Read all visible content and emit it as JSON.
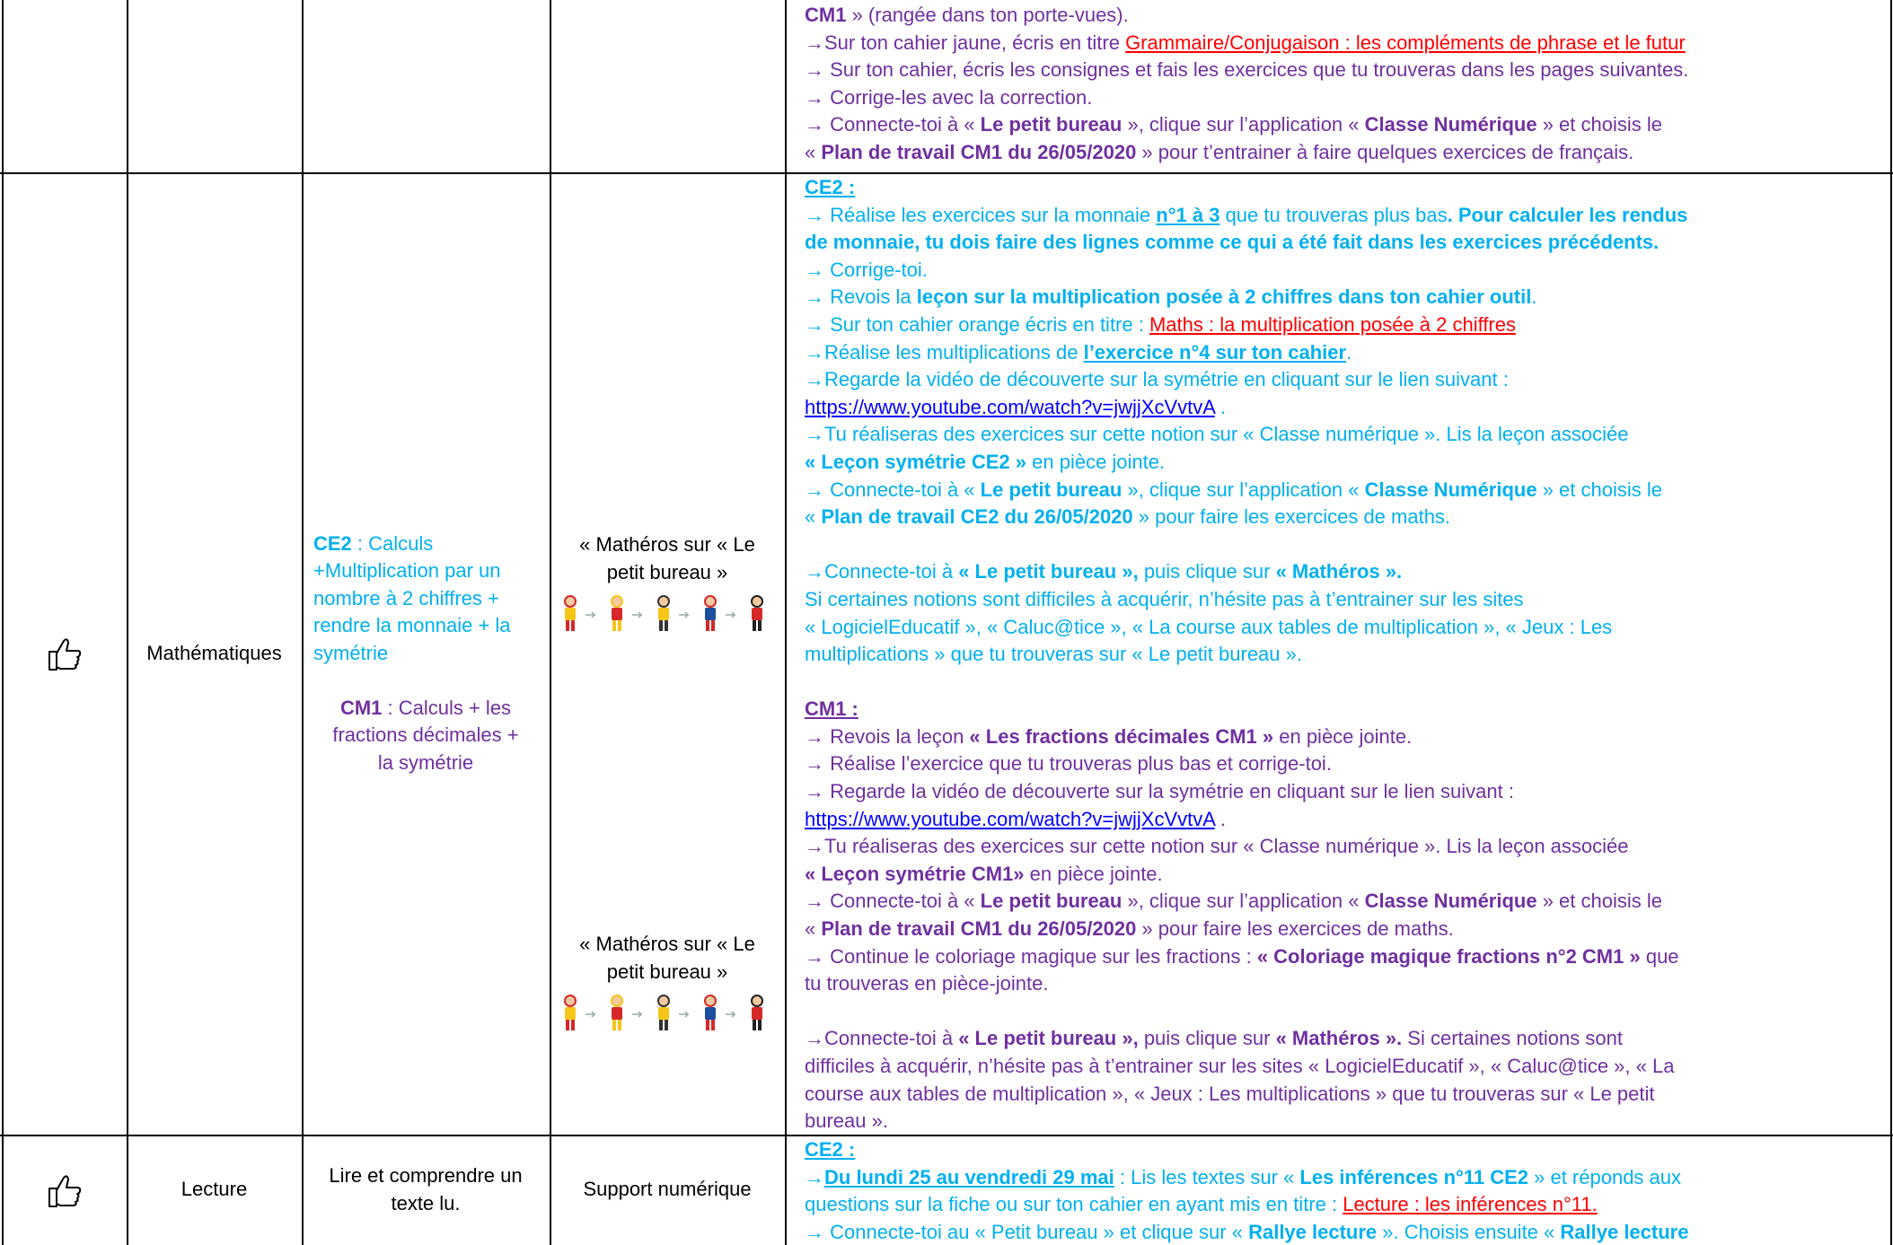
{
  "rows": [
    {
      "instructions": [
        {
          "color": "#7030a0",
          "lines": [
            [
              {
                "text": "CM1",
                "bold": true
              },
              " » (rangée dans ton porte-vues)."
            ],
            [
              "→Sur ton cahier jaune, écris en titre ",
              {
                "text": "Grammaire/Conjugaison : les compléments de phrase et le futur",
                "underline": true,
                "color": "#ff0000"
              }
            ],
            [
              "→ Sur ton cahier, écris les consignes et fais les exercices que tu trouveras dans les pages suivantes."
            ],
            [
              "→ Corrige-les avec la correction."
            ],
            [
              "→ Connecte-toi à « ",
              {
                "text": "Le petit bureau",
                "bold": true
              },
              " », clique sur l’application « ",
              {
                "text": "Classe Numérique",
                "bold": true
              },
              " » et choisis le"
            ],
            [
              "« ",
              {
                "text": "Plan de travail CM1 du 26/05/2020",
                "bold": true
              },
              " » pour t’entrainer à faire quelques exercices de français."
            ]
          ]
        }
      ]
    },
    {
      "subject": "Mathématiques",
      "objective": [
        {
          "color": "#00b0f0",
          "lines": [
            [
              {
                "text": "CE2",
                "bold": true
              },
              " : Calculs"
            ],
            [
              "+Multiplication par un"
            ],
            [
              "nombre à 2 chiffres +"
            ],
            [
              "rendre la monnaie + la"
            ],
            [
              "symétrie"
            ]
          ]
        },
        {
          "color": "#7030a0",
          "lines": [
            [
              {
                "text": "CM1",
                "bold": true
              },
              " : Calculs + les"
            ],
            [
              "fractions décimales +"
            ],
            [
              "la symétrie"
            ]
          ]
        }
      ],
      "support": [
        {
          "lines": [
            [
              "« Mathéros sur « Le"
            ],
            [
              "petit bureau »"
            ]
          ]
        },
        {
          "lines": [
            [
              "« Mathéros sur « Le"
            ],
            [
              "petit bureau »"
            ]
          ]
        }
      ],
      "instructions": [
        {
          "color": "#00b0f0",
          "lines": [
            [
              {
                "text": "CE2 :",
                "bold": true,
                "underline": true
              }
            ],
            [
              "→ Réalise les exercices sur la monnaie ",
              {
                "text": "n°1 à 3",
                "bold": true,
                "underline": true
              },
              " que tu trouveras plus bas",
              {
                "text": ". Pour calculer les rendus",
                "bold": true
              }
            ],
            [
              {
                "text": "de monnaie, tu dois faire des lignes comme ce qui a été fait dans les exercices précédents.",
                "bold": true
              }
            ],
            [
              "→ Corrige-toi."
            ],
            [
              "→ Revois la ",
              {
                "text": "leçon sur la multiplication posée à 2 chiffres dans ton cahier outil",
                "bold": true
              },
              "."
            ],
            [
              "→ Sur ton cahier orange écris en titre : ",
              {
                "text": "Maths : la multiplication posée à 2 chiffres",
                "underline": true,
                "color": "#ff0000"
              }
            ],
            [
              "→Réalise les multiplications de ",
              {
                "text": "l’exercice n°4 sur ton cahier",
                "bold": true,
                "underline": true
              },
              "."
            ],
            [
              "→Regarde la vidéo de découverte sur la symétrie en cliquant sur le lien suivant :"
            ],
            [
              {
                "text": "https://www.youtube.com/watch?v=jwjjXcVvtvA",
                "underline": true,
                "color": "#0000ff"
              },
              " ."
            ],
            [
              "→Tu réaliseras des exercices sur cette notion sur « Classe numérique ». Lis la leçon associée"
            ],
            [
              {
                "text": "« Leçon symétrie CE2 »",
                "bold": true
              },
              " en pièce jointe."
            ],
            [
              "→ Connecte-toi à « ",
              {
                "text": "Le petit bureau",
                "bold": true
              },
              " », clique sur l’application « ",
              {
                "text": "Classe Numérique",
                "bold": true
              },
              " » et choisis le"
            ],
            [
              "« ",
              {
                "text": "Plan de travail CE2 du 26/05/2020",
                "bold": true
              },
              " » pour faire les exercices de maths."
            ],
            [],
            [
              "→Connecte-toi à ",
              {
                "text": "« Le petit bureau »,",
                "bold": true
              },
              " puis clique sur ",
              {
                "text": "« Mathéros ».",
                "bold": true
              }
            ],
            [
              "Si certaines notions sont difficiles à acquérir, n’hésite pas à t’entrainer sur les sites"
            ],
            [
              "« LogicielEducatif », « Caluc@tice », « La course aux tables de multiplication », « Jeux : Les"
            ],
            [
              "multiplications » que tu trouveras sur « Le petit bureau »."
            ],
            []
          ]
        },
        {
          "color": "#7030a0",
          "lines": [
            [
              {
                "text": "CM1 :",
                "bold": true,
                "underline": true
              }
            ],
            [
              "→ Revois la leçon ",
              {
                "text": "« Les fractions décimales CM1 »",
                "bold": true
              },
              " en pièce jointe."
            ],
            [
              "→ Réalise l’exercice que tu trouveras plus bas et corrige-toi."
            ],
            [
              "→ Regarde la vidéo de découverte sur la symétrie en cliquant sur le lien suivant :"
            ],
            [
              {
                "text": "https://www.youtube.com/watch?v=jwjjXcVvtvA",
                "underline": true,
                "color": "#0000ff"
              },
              " ."
            ],
            [
              "→Tu réaliseras des exercices sur cette notion sur « Classe numérique ». Lis la leçon associée"
            ],
            [
              {
                "text": "« Leçon symétrie CM1»",
                "bold": true
              },
              " en pièce jointe."
            ],
            [
              "→ Connecte-toi à « ",
              {
                "text": "Le petit bureau",
                "bold": true
              },
              " », clique sur l’application « ",
              {
                "text": "Classe Numérique",
                "bold": true
              },
              " » et choisis le"
            ],
            [
              "« ",
              {
                "text": "Plan de travail CM1 du 26/05/2020",
                "bold": true
              },
              " » pour faire les exercices de maths."
            ],
            [
              "→ Continue le coloriage magique sur les fractions : ",
              {
                "text": "« Coloriage magique fractions n°2 CM1 »",
                "bold": true
              },
              " que"
            ],
            [
              "tu trouveras en pièce-jointe."
            ],
            [],
            [
              "→Connecte-toi à ",
              {
                "text": "« Le petit bureau »,",
                "bold": true
              },
              " puis clique sur ",
              {
                "text": "« Mathéros ».",
                "bold": true
              },
              " Si certaines notions sont"
            ],
            [
              "difficiles à acquérir, n’hésite pas à t’entrainer sur les sites « LogicielEducatif », « Caluc@tice », « La"
            ],
            [
              "course aux tables de multiplication », « Jeux : Les multiplications » que tu trouveras sur « Le petit"
            ],
            [
              "bureau »."
            ]
          ]
        }
      ]
    },
    {
      "subject": "Lecture",
      "objective": [
        {
          "lines": [
            [
              "Lire et comprendre un"
            ],
            [
              "texte lu."
            ]
          ]
        }
      ],
      "support": [
        {
          "lines": [
            [
              "Support numérique"
            ]
          ]
        }
      ],
      "instructions": [
        {
          "color": "#00b0f0",
          "lines": [
            [
              {
                "text": "CE2 :",
                "bold": true,
                "underline": true
              }
            ],
            [
              "→",
              {
                "text": "Du lundi 25 au vendredi 29 mai",
                "bold": true,
                "underline": true
              },
              " : Lis les textes sur « ",
              {
                "text": "Les inférences n°11 CE2",
                "bold": true
              },
              " » et réponds aux"
            ],
            [
              "questions sur la fiche ou sur ton cahier en ayant mis en titre : ",
              {
                "text": "Lecture : les inférences n°11.",
                "underline": true,
                "color": "#ff0000"
              }
            ],
            [
              "→ Connecte-toi au « Petit bureau » et clique sur « ",
              {
                "text": "Rallye lecture",
                "bold": true
              },
              " ». Choisis ensuite « ",
              {
                "text": "Rallye lecture",
                "bold": true
              }
            ]
          ]
        }
      ]
    }
  ]
}
